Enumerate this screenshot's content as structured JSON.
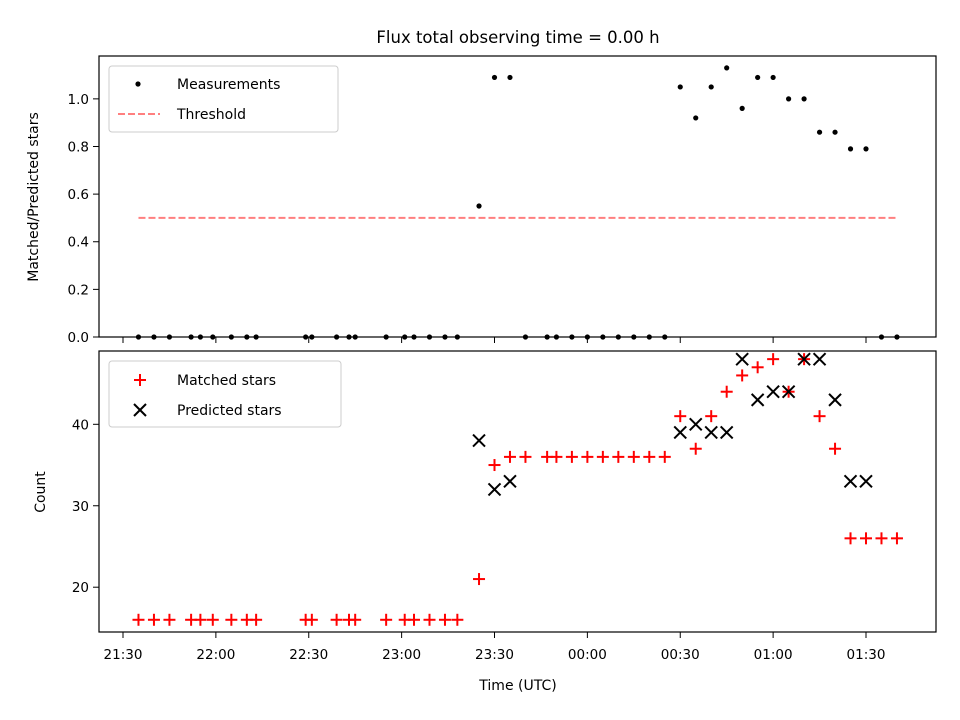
{
  "chart_data": {
    "title": "Flux total observing time = 0.00 h",
    "xlabel": "Time (UTC)",
    "x_axis": {
      "unit": "hours since 21:30 UTC tick origin is not printed; ticks are clock times",
      "ticks": [
        "21:30",
        "22:00",
        "22:30",
        "23:00",
        "23:30",
        "00:00",
        "00:30",
        "01:00",
        "01:30"
      ]
    },
    "panels": [
      {
        "type": "scatter",
        "ylabel": "Matched/Predicted stars",
        "ylim": [
          0,
          1.18
        ],
        "yticks": [
          "0.0",
          "0.2",
          "0.4",
          "0.6",
          "0.8",
          "1.0"
        ],
        "legend": {
          "placement": "top-left"
        },
        "series": [
          {
            "name": "Measurements",
            "marker": "dot",
            "color": "#000000",
            "points": [
              [
                "21:35",
                0
              ],
              [
                "21:40",
                0
              ],
              [
                "21:45",
                0
              ],
              [
                "21:52",
                0
              ],
              [
                "21:55",
                0
              ],
              [
                "21:59",
                0
              ],
              [
                "22:05",
                0
              ],
              [
                "22:10",
                0
              ],
              [
                "22:13",
                0
              ],
              [
                "22:29",
                0
              ],
              [
                "22:31",
                0
              ],
              [
                "22:39",
                0
              ],
              [
                "22:43",
                0
              ],
              [
                "22:45",
                0
              ],
              [
                "22:55",
                0
              ],
              [
                "23:01",
                0
              ],
              [
                "23:04",
                0
              ],
              [
                "23:09",
                0
              ],
              [
                "23:14",
                0
              ],
              [
                "23:18",
                0
              ],
              [
                "23:25",
                0.55
              ],
              [
                "23:30",
                1.09
              ],
              [
                "23:35",
                1.09
              ],
              [
                "23:40",
                0
              ],
              [
                "23:47",
                0
              ],
              [
                "23:50",
                0
              ],
              [
                "23:55",
                0
              ],
              [
                "00:00",
                0
              ],
              [
                "00:05",
                0
              ],
              [
                "00:10",
                0
              ],
              [
                "00:15",
                0
              ],
              [
                "00:20",
                0
              ],
              [
                "00:25",
                0
              ],
              [
                "00:30",
                1.05
              ],
              [
                "00:35",
                0.92
              ],
              [
                "00:40",
                1.05
              ],
              [
                "00:45",
                1.13
              ],
              [
                "00:50",
                0.96
              ],
              [
                "00:55",
                1.09
              ],
              [
                "01:00",
                1.09
              ],
              [
                "01:05",
                1.0
              ],
              [
                "01:10",
                1.0
              ],
              [
                "01:15",
                0.86
              ],
              [
                "01:20",
                0.86
              ],
              [
                "01:25",
                0.79
              ],
              [
                "01:30",
                0.79
              ],
              [
                "01:35",
                0
              ],
              [
                "01:40",
                0
              ]
            ]
          },
          {
            "name": "Threshold",
            "marker": "dashed-line",
            "color": "#ff7f7f",
            "points": [
              [
                "21:35",
                0.5
              ],
              [
                "01:40",
                0.5
              ]
            ]
          }
        ]
      },
      {
        "type": "scatter",
        "ylabel": "Count",
        "ylim": [
          14.5,
          49
        ],
        "yticks": [
          "20",
          "30",
          "40"
        ],
        "legend": {
          "placement": "top-left"
        },
        "series": [
          {
            "name": "Matched stars",
            "marker": "plus",
            "color": "#ff0000",
            "points": [
              [
                "21:35",
                16
              ],
              [
                "21:40",
                16
              ],
              [
                "21:45",
                16
              ],
              [
                "21:52",
                16
              ],
              [
                "21:55",
                16
              ],
              [
                "21:59",
                16
              ],
              [
                "22:05",
                16
              ],
              [
                "22:10",
                16
              ],
              [
                "22:13",
                16
              ],
              [
                "22:29",
                16
              ],
              [
                "22:31",
                16
              ],
              [
                "22:39",
                16
              ],
              [
                "22:43",
                16
              ],
              [
                "22:45",
                16
              ],
              [
                "22:55",
                16
              ],
              [
                "23:01",
                16
              ],
              [
                "23:04",
                16
              ],
              [
                "23:09",
                16
              ],
              [
                "23:14",
                16
              ],
              [
                "23:18",
                16
              ],
              [
                "23:25",
                21
              ],
              [
                "23:30",
                35
              ],
              [
                "23:35",
                36
              ],
              [
                "23:40",
                36
              ],
              [
                "23:47",
                36
              ],
              [
                "23:50",
                36
              ],
              [
                "23:55",
                36
              ],
              [
                "00:00",
                36
              ],
              [
                "00:05",
                36
              ],
              [
                "00:10",
                36
              ],
              [
                "00:15",
                36
              ],
              [
                "00:20",
                36
              ],
              [
                "00:25",
                36
              ],
              [
                "00:30",
                41
              ],
              [
                "00:35",
                37
              ],
              [
                "00:40",
                41
              ],
              [
                "00:45",
                44
              ],
              [
                "00:50",
                46
              ],
              [
                "00:55",
                47
              ],
              [
                "01:00",
                48
              ],
              [
                "01:05",
                44
              ],
              [
                "01:10",
                48
              ],
              [
                "01:15",
                41
              ],
              [
                "01:20",
                37
              ],
              [
                "01:25",
                26
              ],
              [
                "01:30",
                26
              ],
              [
                "01:35",
                26
              ],
              [
                "01:40",
                26
              ]
            ]
          },
          {
            "name": "Predicted stars",
            "marker": "x",
            "color": "#000000",
            "points": [
              [
                "23:25",
                38
              ],
              [
                "23:30",
                32
              ],
              [
                "23:35",
                33
              ],
              [
                "00:30",
                39
              ],
              [
                "00:35",
                40
              ],
              [
                "00:40",
                39
              ],
              [
                "00:45",
                39
              ],
              [
                "00:50",
                48
              ],
              [
                "00:55",
                43
              ],
              [
                "01:00",
                44
              ],
              [
                "01:05",
                44
              ],
              [
                "01:10",
                48
              ],
              [
                "01:15",
                48
              ],
              [
                "01:20",
                43
              ],
              [
                "01:25",
                33
              ],
              [
                "01:30",
                33
              ]
            ]
          }
        ]
      }
    ]
  }
}
